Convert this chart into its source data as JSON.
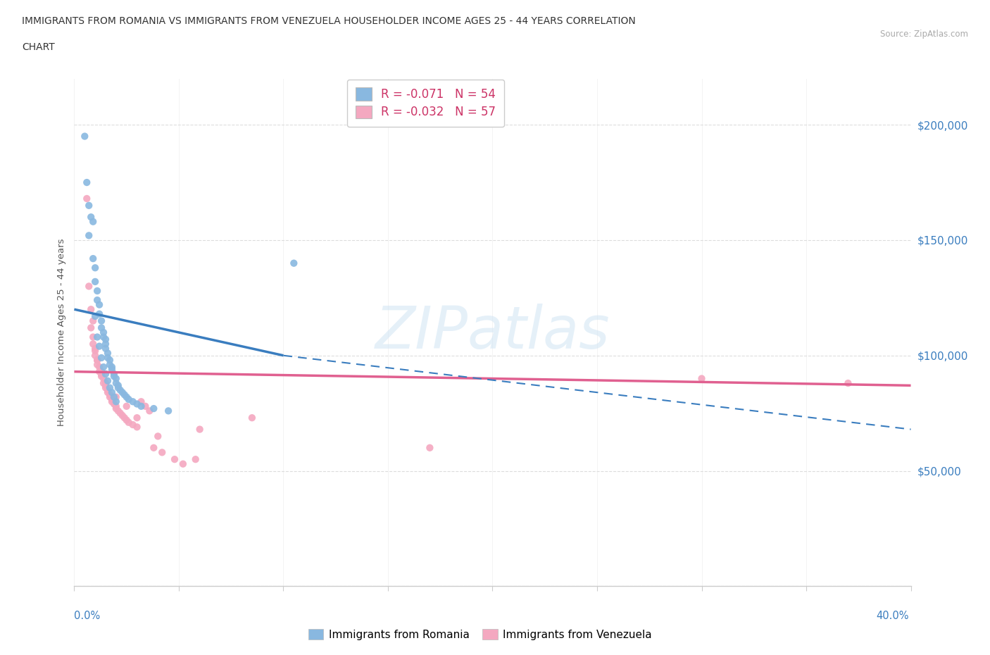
{
  "title_line1": "IMMIGRANTS FROM ROMANIA VS IMMIGRANTS FROM VENEZUELA HOUSEHOLDER INCOME AGES 25 - 44 YEARS CORRELATION",
  "title_line2": "CHART",
  "source": "Source: ZipAtlas.com",
  "ylabel": "Householder Income Ages 25 - 44 years",
  "xlim": [
    0.0,
    40.0
  ],
  "ylim": [
    0,
    220000
  ],
  "romania_color": "#89b8e0",
  "venezuela_color": "#f4a8c0",
  "romania_line_color": "#3a7dbf",
  "venezuela_line_color": "#e06090",
  "watermark": "ZIPatlas",
  "romania_N": 54,
  "venezuela_N": 57,
  "romania_R": -0.071,
  "venezuela_R": -0.032,
  "romania_line_x0": 0.0,
  "romania_line_y0": 120000,
  "romania_line_x1": 10.0,
  "romania_line_y1": 100000,
  "romania_dash_x0": 10.0,
  "romania_dash_y0": 100000,
  "romania_dash_x1": 40.0,
  "romania_dash_y1": 68000,
  "venezuela_line_x0": 0.0,
  "venezuela_line_y0": 93000,
  "venezuela_line_x1": 40.0,
  "venezuela_line_y1": 87000,
  "romania_x": [
    0.5,
    0.7,
    0.8,
    0.9,
    0.9,
    1.0,
    1.0,
    1.1,
    1.1,
    1.2,
    1.2,
    1.3,
    1.3,
    1.4,
    1.4,
    1.5,
    1.5,
    1.5,
    1.6,
    1.6,
    1.7,
    1.7,
    1.8,
    1.8,
    1.9,
    1.9,
    2.0,
    2.0,
    2.1,
    2.1,
    2.2,
    2.3,
    2.4,
    2.5,
    2.6,
    2.8,
    3.0,
    3.2,
    3.8,
    4.5,
    0.6,
    0.7,
    1.0,
    1.1,
    1.2,
    1.3,
    1.4,
    1.5,
    1.6,
    1.7,
    1.8,
    1.9,
    2.0,
    10.5
  ],
  "romania_y": [
    195000,
    165000,
    160000,
    158000,
    142000,
    138000,
    132000,
    128000,
    124000,
    122000,
    118000,
    115000,
    112000,
    110000,
    108000,
    107000,
    105000,
    103000,
    101000,
    99000,
    98000,
    96000,
    95000,
    94000,
    92000,
    91000,
    90000,
    88000,
    87000,
    86000,
    85000,
    84000,
    83000,
    82000,
    81000,
    80000,
    79000,
    78000,
    77000,
    76000,
    175000,
    152000,
    117000,
    108000,
    104000,
    99000,
    95000,
    92000,
    89000,
    86000,
    84000,
    82000,
    80000,
    140000
  ],
  "venezuela_x": [
    0.6,
    0.7,
    0.8,
    0.9,
    0.9,
    1.0,
    1.0,
    1.1,
    1.1,
    1.2,
    1.2,
    1.3,
    1.3,
    1.4,
    1.4,
    1.5,
    1.5,
    1.6,
    1.6,
    1.7,
    1.7,
    1.8,
    1.8,
    1.9,
    2.0,
    2.0,
    2.1,
    2.2,
    2.3,
    2.4,
    2.5,
    2.6,
    2.8,
    3.0,
    3.2,
    3.4,
    3.6,
    3.8,
    4.0,
    4.2,
    4.8,
    5.2,
    5.8,
    8.5,
    17.0,
    30.0,
    37.0,
    0.8,
    0.9,
    1.0,
    1.1,
    1.3,
    1.5,
    2.0,
    2.5,
    3.0,
    6.0
  ],
  "venezuela_y": [
    168000,
    130000,
    120000,
    115000,
    105000,
    102000,
    100000,
    98000,
    96000,
    95000,
    93000,
    92000,
    91000,
    90000,
    88000,
    87000,
    86000,
    85000,
    84000,
    83000,
    82000,
    81000,
    80000,
    79000,
    78000,
    77000,
    76000,
    75000,
    74000,
    73000,
    72000,
    71000,
    70000,
    69000,
    80000,
    78000,
    76000,
    60000,
    65000,
    58000,
    55000,
    53000,
    55000,
    73000,
    60000,
    90000,
    88000,
    112000,
    108000,
    103000,
    98000,
    93000,
    88000,
    82000,
    78000,
    73000,
    68000
  ]
}
